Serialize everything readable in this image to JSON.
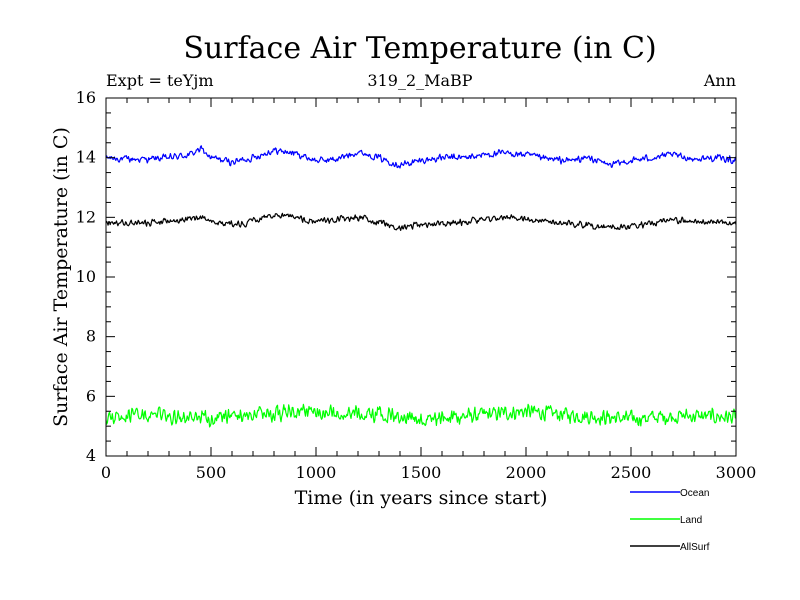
{
  "chart_data": {
    "type": "line",
    "title": "Surface Air Temperature (in C)",
    "subtitle": "319_2_MaBP",
    "experiment_label": "Expt = teYjm",
    "season_label": "Ann",
    "xlabel": "Time (in years since start)",
    "ylabel": "Surface Air Temperature (in C)",
    "xlim": [
      0,
      3000
    ],
    "ylim": [
      4,
      16
    ],
    "x_ticks": [
      0,
      500,
      1000,
      1500,
      2000,
      2500,
      3000
    ],
    "y_ticks": [
      4,
      6,
      8,
      10,
      12,
      14,
      16
    ],
    "legend_position": "bottom-right",
    "series": [
      {
        "name": "Ocean",
        "color": "#0000ff",
        "noise_amplitude": 0.1,
        "points": [
          [
            0,
            14.0
          ],
          [
            100,
            13.95
          ],
          [
            200,
            13.95
          ],
          [
            300,
            14.0
          ],
          [
            400,
            14.1
          ],
          [
            450,
            14.3
          ],
          [
            500,
            14.0
          ],
          [
            600,
            13.85
          ],
          [
            700,
            14.0
          ],
          [
            800,
            14.25
          ],
          [
            900,
            14.15
          ],
          [
            1000,
            13.9
          ],
          [
            1100,
            13.95
          ],
          [
            1200,
            14.2
          ],
          [
            1300,
            14.0
          ],
          [
            1400,
            13.75
          ],
          [
            1500,
            13.9
          ],
          [
            1600,
            14.0
          ],
          [
            1700,
            14.0
          ],
          [
            1800,
            14.1
          ],
          [
            1900,
            14.15
          ],
          [
            2000,
            14.1
          ],
          [
            2100,
            13.95
          ],
          [
            2200,
            13.9
          ],
          [
            2300,
            14.0
          ],
          [
            2400,
            13.75
          ],
          [
            2500,
            13.9
          ],
          [
            2600,
            14.0
          ],
          [
            2700,
            14.1
          ],
          [
            2800,
            13.95
          ],
          [
            2900,
            14.0
          ],
          [
            3000,
            13.9
          ]
        ]
      },
      {
        "name": "Land",
        "color": "#00ff00",
        "noise_amplitude": 0.22,
        "points": [
          [
            0,
            5.3
          ],
          [
            250,
            5.35
          ],
          [
            500,
            5.25
          ],
          [
            750,
            5.4
          ],
          [
            1000,
            5.5
          ],
          [
            1250,
            5.4
          ],
          [
            1500,
            5.25
          ],
          [
            1750,
            5.35
          ],
          [
            2000,
            5.5
          ],
          [
            2250,
            5.35
          ],
          [
            2500,
            5.25
          ],
          [
            2750,
            5.35
          ],
          [
            3000,
            5.3
          ]
        ]
      },
      {
        "name": "AllSurf",
        "color": "#000000",
        "noise_amplitude": 0.09,
        "points": [
          [
            0,
            11.85
          ],
          [
            200,
            11.8
          ],
          [
            400,
            11.95
          ],
          [
            450,
            12.0
          ],
          [
            500,
            11.85
          ],
          [
            650,
            11.75
          ],
          [
            800,
            12.1
          ],
          [
            900,
            12.0
          ],
          [
            1000,
            11.85
          ],
          [
            1200,
            12.0
          ],
          [
            1400,
            11.65
          ],
          [
            1500,
            11.75
          ],
          [
            1700,
            11.85
          ],
          [
            1900,
            12.0
          ],
          [
            2000,
            11.95
          ],
          [
            2200,
            11.8
          ],
          [
            2400,
            11.65
          ],
          [
            2500,
            11.7
          ],
          [
            2700,
            11.9
          ],
          [
            2900,
            11.85
          ],
          [
            3000,
            11.8
          ]
        ]
      }
    ]
  }
}
